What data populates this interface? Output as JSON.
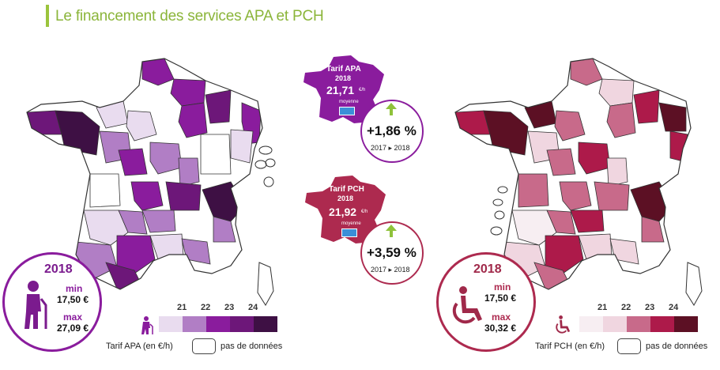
{
  "title": "Le financement des services APA et PCH",
  "apa": {
    "year": "2018",
    "min_label": "min",
    "min_value": "17,50 €",
    "max_label": "max",
    "max_value": "27,09 €",
    "legend_title": "Tarif APA (en €/h)",
    "ticks": [
      "21",
      "22",
      "23",
      "24"
    ],
    "nodata_label": "pas de données",
    "badge_title": "Tarif APA",
    "badge_year": "2018",
    "badge_value": "21,71",
    "badge_unit": "€/h",
    "badge_avg": "moyenne",
    "change": "+1,86 %",
    "change_period": "2017 ▸ 2018",
    "colors": [
      "#e9dcef",
      "#b17ec5",
      "#8a1c9d",
      "#6d1779",
      "#3e1044"
    ]
  },
  "pch": {
    "year": "2018",
    "min_label": "min",
    "min_value": "17,50 €",
    "max_label": "max",
    "max_value": "30,32 €",
    "legend_title": "Tarif PCH (en €/h)",
    "ticks": [
      "21",
      "22",
      "23",
      "24"
    ],
    "nodata_label": "pas de données",
    "badge_title": "Tarif PCH",
    "badge_year": "2018",
    "badge_value": "21,92",
    "badge_unit": "€/h",
    "badge_avg": "moyenne",
    "change": "+3,59 %",
    "change_period": "2017 ▸ 2018",
    "colors": [
      "#f7eef2",
      "#f0d6e0",
      "#c86a8a",
      "#ad1a4a",
      "#5c1024"
    ]
  }
}
